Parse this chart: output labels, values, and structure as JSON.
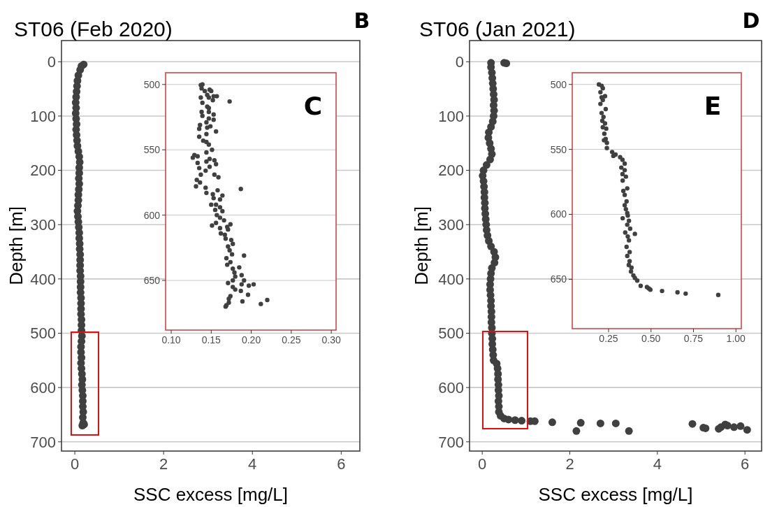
{
  "chart_data": [
    {
      "type": "scatter",
      "title": "ST06 (Feb 2020)",
      "xlabel": "SSC excess [mg/L]",
      "ylabel": "Depth [m]",
      "annotations": [
        "B"
      ],
      "color": "#404040",
      "marker": "circle",
      "grid": "y",
      "xlim": [
        -0.3,
        6.42
      ],
      "xticks": [
        0,
        2,
        4,
        6
      ],
      "ylim": [
        717,
        -39
      ],
      "yticks": [
        0,
        100,
        200,
        300,
        400,
        500,
        600,
        700
      ],
      "x": [
        0.2,
        0.15,
        0.12,
        0.08,
        0.06,
        0.05,
        0.04,
        0.03,
        0.02,
        0.03,
        0.02,
        0.03,
        0.04,
        0.03,
        0.04,
        0.05,
        0.06,
        0.08,
        0.1,
        0.11,
        0.1,
        0.1,
        0.09,
        0.1,
        0.09,
        0.08,
        0.08,
        0.07,
        0.06,
        0.07,
        0.08,
        0.09,
        0.1,
        0.1,
        0.11,
        0.11,
        0.12,
        0.12,
        0.12,
        0.12,
        0.13,
        0.13,
        0.13,
        0.13,
        0.14,
        0.14,
        0.14,
        0.14,
        0.15,
        0.15,
        0.15,
        0.16,
        0.15,
        0.14,
        0.14,
        0.15,
        0.14,
        0.15,
        0.16,
        0.17,
        0.16,
        0.17,
        0.18,
        0.18,
        0.18,
        0.19,
        0.18,
        0.19,
        0.17,
        0.21
      ],
      "values": [
        5,
        8,
        15,
        25,
        35,
        45,
        55,
        65,
        75,
        85,
        95,
        105,
        115,
        125,
        135,
        145,
        155,
        165,
        175,
        185,
        195,
        205,
        215,
        225,
        235,
        245,
        255,
        265,
        275,
        285,
        295,
        305,
        315,
        325,
        335,
        345,
        355,
        365,
        375,
        385,
        395,
        405,
        415,
        425,
        435,
        445,
        455,
        465,
        475,
        485,
        495,
        505,
        515,
        525,
        535,
        545,
        555,
        565,
        575,
        585,
        595,
        605,
        615,
        625,
        635,
        645,
        655,
        665,
        670,
        668
      ]
    },
    {
      "type": "scatter",
      "annotations": [
        "C"
      ],
      "color": "#404040",
      "marker": "circle",
      "grid": "y",
      "xlim": [
        0.093,
        0.306
      ],
      "xticks": [
        {
          "value": 0.1,
          "label": "0.10"
        },
        {
          "value": 0.15,
          "label": "0.15"
        },
        {
          "value": 0.2,
          "label": "0.20"
        },
        {
          "value": 0.25,
          "label": "0.25"
        },
        {
          "value": 0.3,
          "label": "0.30"
        }
      ],
      "ylim": [
        688,
        491
      ],
      "yticks": [
        500,
        550,
        600,
        650
      ],
      "x": [
        0.137,
        0.139,
        0.138,
        0.142,
        0.148,
        0.15,
        0.145,
        0.153,
        0.157,
        0.137,
        0.147,
        0.152,
        0.173,
        0.139,
        0.145,
        0.147,
        0.138,
        0.147,
        0.153,
        0.139,
        0.147,
        0.144,
        0.153,
        0.136,
        0.149,
        0.145,
        0.135,
        0.156,
        0.144,
        0.135,
        0.14,
        0.144,
        0.147,
        0.151,
        0.144,
        0.129,
        0.127,
        0.133,
        0.148,
        0.154,
        0.144,
        0.133,
        0.156,
        0.135,
        0.148,
        0.143,
        0.154,
        0.159,
        0.137,
        0.132,
        0.136,
        0.131,
        0.143,
        0.187,
        0.144,
        0.152,
        0.158,
        0.164,
        0.153,
        0.161,
        0.15,
        0.156,
        0.161,
        0.155,
        0.164,
        0.157,
        0.161,
        0.166,
        0.151,
        0.156,
        0.174,
        0.17,
        0.161,
        0.171,
        0.162,
        0.167,
        0.168,
        0.175,
        0.177,
        0.171,
        0.173,
        0.176,
        0.191,
        0.169,
        0.174,
        0.17,
        0.177,
        0.185,
        0.179,
        0.18,
        0.188,
        0.191,
        0.177,
        0.171,
        0.203,
        0.188,
        0.197,
        0.177,
        0.18,
        0.187,
        0.196,
        0.174,
        0.172,
        0.189,
        0.22,
        0.212,
        0.172,
        0.169,
        0.168
      ],
      "values": [
        500.5,
        500,
        503,
        505,
        504,
        505,
        508,
        509,
        509,
        510,
        510,
        512,
        513,
        514,
        517,
        518,
        521,
        521,
        523,
        524,
        526,
        529,
        527,
        531,
        532,
        533,
        534,
        536,
        538,
        540,
        543,
        544,
        546,
        550,
        552,
        554,
        556,
        555,
        557,
        558,
        559,
        560,
        561,
        564,
        563,
        566,
        569,
        571,
        569,
        573,
        575,
        578,
        579,
        580,
        583,
        584,
        581,
        585,
        587,
        588,
        592,
        592,
        594,
        596,
        597,
        600,
        602,
        604,
        608,
        606,
        607,
        609,
        610,
        611,
        614,
        615,
        618,
        619,
        622,
        624,
        627,
        630,
        631,
        633,
        636,
        638,
        641,
        640,
        644,
        647,
        646,
        650,
        650,
        652,
        653,
        653,
        654,
        655,
        657,
        658,
        661,
        662,
        664,
        666,
        665,
        668,
        667,
        669,
        670
      ]
    },
    {
      "type": "scatter",
      "title": "ST06 (Jan 2021)",
      "xlabel": "SSC excess [mg/L]",
      "ylabel": "Depth [m]",
      "annotations": [
        "D"
      ],
      "color": "#404040",
      "marker": "circle",
      "grid": "y",
      "xlim": [
        -0.29,
        6.38
      ],
      "xticks": [
        0,
        2,
        4,
        6
      ],
      "ylim": [
        717,
        -39
      ],
      "yticks": [
        0,
        100,
        200,
        300,
        400,
        500,
        600,
        700
      ],
      "x": [
        0.2,
        0.5,
        0.55,
        0.2,
        0.22,
        0.23,
        0.24,
        0.25,
        0.26,
        0.27,
        0.26,
        0.27,
        0.26,
        0.24,
        0.2,
        0.15,
        0.14,
        0.17,
        0.2,
        0.22,
        0.18,
        0.1,
        0.03,
        0.01,
        0.03,
        0.04,
        0.05,
        0.05,
        0.06,
        0.06,
        0.07,
        0.08,
        0.09,
        0.1,
        0.12,
        0.15,
        0.2,
        0.27,
        0.3,
        0.28,
        0.22,
        0.2,
        0.19,
        0.18,
        0.18,
        0.19,
        0.2,
        0.2,
        0.21,
        0.21,
        0.21,
        0.22,
        0.22,
        0.23,
        0.23,
        0.24,
        0.25,
        0.26,
        0.33,
        0.35,
        0.36,
        0.36,
        0.37,
        0.37,
        0.38,
        0.37,
        0.38,
        0.38,
        0.42,
        0.5,
        0.6,
        0.75,
        0.9,
        1.1,
        1.2,
        1.6,
        2.15,
        2.25,
        2.7,
        3.05,
        3.35,
        4.8,
        5.05,
        5.1,
        5.4,
        5.45,
        5.55,
        5.6,
        5.75,
        5.9,
        6.05
      ],
      "values": [
        2,
        2,
        3,
        10,
        20,
        30,
        40,
        50,
        60,
        70,
        80,
        90,
        100,
        110,
        120,
        130,
        140,
        150,
        160,
        170,
        180,
        190,
        200,
        210,
        220,
        230,
        240,
        250,
        260,
        270,
        280,
        290,
        300,
        310,
        320,
        330,
        340,
        350,
        360,
        370,
        380,
        390,
        400,
        410,
        420,
        430,
        440,
        450,
        460,
        470,
        480,
        490,
        500,
        510,
        520,
        530,
        540,
        550,
        556,
        565,
        575,
        585,
        595,
        605,
        615,
        625,
        635,
        645,
        652,
        657,
        659,
        660,
        661,
        662,
        662,
        664,
        680,
        665,
        666,
        666,
        680,
        667,
        674,
        675,
        676,
        673,
        668,
        670,
        673,
        671,
        678
      ]
    },
    {
      "type": "scatter",
      "annotations": [
        "E"
      ],
      "color": "#404040",
      "marker": "circle",
      "grid": "y",
      "xlim": [
        0.036,
        1.032
      ],
      "xticks": [
        {
          "value": 0.25,
          "label": "0.25"
        },
        {
          "value": 0.5,
          "label": "0.50"
        },
        {
          "value": 0.75,
          "label": "0.75"
        },
        {
          "value": 1,
          "label": "1.00"
        }
      ],
      "ylim": [
        688,
        491
      ],
      "yticks": [
        500,
        550,
        600,
        650
      ],
      "x": [
        0.193,
        0.209,
        0.216,
        0.202,
        0.229,
        0.209,
        0.216,
        0.202,
        0.233,
        0.209,
        0.22,
        0.213,
        0.229,
        0.216,
        0.236,
        0.225,
        0.233,
        0.223,
        0.24,
        0.24,
        0.271,
        0.291,
        0.278,
        0.318,
        0.332,
        0.345,
        0.325,
        0.345,
        0.332,
        0.352,
        0.333,
        0.36,
        0.337,
        0.345,
        0.356,
        0.345,
        0.352,
        0.36,
        0.333,
        0.363,
        0.37,
        0.36,
        0.377,
        0.348,
        0.405,
        0.363,
        0.37,
        0.356,
        0.374,
        0.36,
        0.374,
        0.369,
        0.385,
        0.382,
        0.396,
        0.405,
        0.419,
        0.439,
        0.476,
        0.487,
        0.496,
        0.565,
        0.656,
        0.704,
        0.896
      ],
      "values": [
        500,
        501,
        503,
        506,
        509,
        510,
        512,
        515,
        519,
        522,
        525,
        528,
        530,
        533,
        534,
        538,
        542,
        543,
        545,
        549,
        552,
        554,
        555,
        556,
        558,
        561,
        564,
        566,
        569,
        571,
        574,
        580,
        582,
        585,
        590,
        593,
        596,
        599,
        603,
        601,
        605,
        608,
        611,
        614,
        615,
        617,
        620,
        625,
        629,
        632,
        636,
        639,
        641,
        644,
        647,
        649,
        651,
        655,
        656,
        657,
        658,
        659,
        660,
        661,
        662
      ]
    }
  ]
}
